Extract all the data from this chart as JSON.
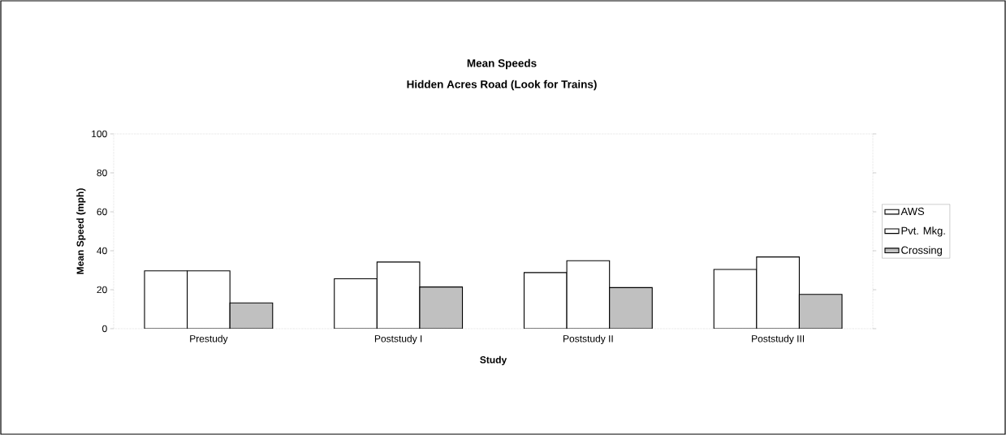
{
  "chart_data": {
    "type": "bar",
    "title": "Mean Speeds",
    "subtitle": "Hidden Acres Road (Look for Trains)",
    "xlabel": "Study",
    "ylabel": "Mean Speed (mph)",
    "categories": [
      "Prestudy",
      "Poststudy I",
      "Poststudy II",
      "Poststudy III"
    ],
    "series": [
      {
        "name": "AWS",
        "color": "#ffffff",
        "values": [
          29.7,
          25.6,
          28.8,
          30.4
        ]
      },
      {
        "name": "Pvt. Mkg.",
        "color": "#ffffff",
        "values": [
          29.7,
          34.2,
          34.9,
          36.8
        ]
      },
      {
        "name": "Crossing",
        "color": "#c0c0c0",
        "values": [
          13.2,
          21.4,
          21.1,
          17.6
        ]
      }
    ],
    "ylim": [
      0,
      100
    ],
    "yticks": [
      0,
      20,
      40,
      60,
      80,
      100
    ],
    "grid": false,
    "legend": "right"
  }
}
